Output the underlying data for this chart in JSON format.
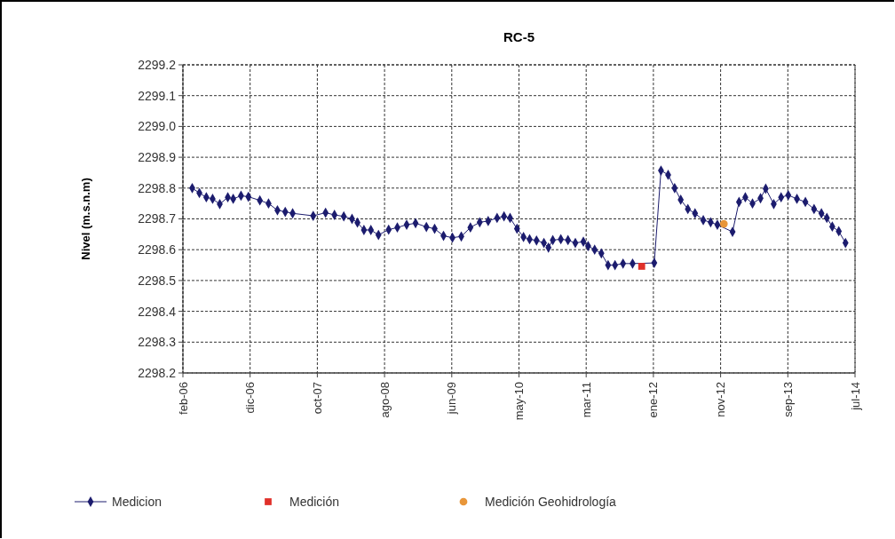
{
  "chart_data": {
    "type": "line",
    "title": "RC-5",
    "ylabel": "Nivel (m.s.n.m)",
    "xlim": [
      "2006-02-01",
      "2014-07-29"
    ],
    "ylim": [
      2298.2,
      2299.2
    ],
    "xticks": [
      {
        "value": "2006-02-01",
        "label": "feb-06"
      },
      {
        "value": "2006-12-08",
        "label": "dic-06"
      },
      {
        "value": "2007-10-14",
        "label": "oct-07"
      },
      {
        "value": "2008-08-19",
        "label": "ago-08"
      },
      {
        "value": "2009-06-25",
        "label": "jun-09"
      },
      {
        "value": "2010-05-01",
        "label": "may-10"
      },
      {
        "value": "2011-03-07",
        "label": "mar-11"
      },
      {
        "value": "2012-01-11",
        "label": "ene-12"
      },
      {
        "value": "2012-11-16",
        "label": "nov-12"
      },
      {
        "value": "2013-09-22",
        "label": "sep-13"
      },
      {
        "value": "2014-07-29",
        "label": "jul-14"
      }
    ],
    "yticks": [
      2298.2,
      2298.3,
      2298.4,
      2298.5,
      2298.6,
      2298.7,
      2298.8,
      2298.9,
      {
        "value": 2299,
        "label": "2299.0"
      },
      2299.1,
      2299.2
    ],
    "grid": true,
    "legend": "bottom",
    "series": [
      {
        "name": "Medicion",
        "marker": "diamond",
        "color": "#1c1c6e",
        "x": [
          "2006-03-16",
          "2006-04-18",
          "2006-05-20",
          "2006-06-18",
          "2006-07-21",
          "2006-08-27",
          "2006-09-21",
          "2006-10-27",
          "2006-11-30",
          "2007-01-22",
          "2007-03-03",
          "2007-04-13",
          "2007-05-19",
          "2007-06-22",
          "2007-09-25",
          "2007-11-21",
          "2008-01-01",
          "2008-02-13",
          "2008-03-22",
          "2008-04-16",
          "2008-05-16",
          "2008-06-17",
          "2008-07-22",
          "2008-09-07",
          "2008-10-17",
          "2008-11-29",
          "2009-01-09",
          "2009-02-28",
          "2009-04-07",
          "2009-05-18",
          "2009-06-28",
          "2009-08-08",
          "2009-09-19",
          "2009-11-01",
          "2009-12-10",
          "2010-01-20",
          "2010-02-21",
          "2010-03-21",
          "2010-04-22",
          "2010-05-22",
          "2010-06-19",
          "2010-07-21",
          "2010-08-24",
          "2010-09-14",
          "2010-10-04",
          "2010-11-10",
          "2010-12-13",
          "2011-01-16",
          "2011-02-22",
          "2011-03-16",
          "2011-04-15",
          "2011-05-16",
          "2011-06-16",
          "2011-07-18",
          "2011-08-24",
          "2011-10-07",
          "2012-01-15",
          "2012-02-15",
          "2012-03-19",
          "2012-04-18",
          "2012-05-16",
          "2012-06-18",
          "2012-07-21",
          "2012-08-28",
          "2012-10-01",
          "2012-11-01",
          "2013-01-10",
          "2013-02-09",
          "2013-03-10",
          "2013-04-12",
          "2013-05-19",
          "2013-06-12",
          "2013-07-19",
          "2013-08-22",
          "2013-09-24",
          "2013-11-03",
          "2013-12-12",
          "2014-01-21",
          "2014-02-24",
          "2014-03-21",
          "2014-04-15",
          "2014-05-15",
          "2014-06-15"
        ],
        "values": [
          2298.8,
          2298.784,
          2298.77,
          2298.765,
          2298.748,
          2298.77,
          2298.765,
          2298.775,
          2298.772,
          2298.76,
          2298.75,
          2298.728,
          2298.723,
          2298.718,
          2298.71,
          2298.72,
          2298.713,
          2298.708,
          2298.7,
          2298.688,
          2298.664,
          2298.664,
          2298.648,
          2298.665,
          2298.672,
          2298.681,
          2298.686,
          2298.674,
          2298.668,
          2298.645,
          2298.639,
          2298.643,
          2298.672,
          2298.689,
          2298.693,
          2298.703,
          2298.708,
          2298.703,
          2298.668,
          2298.641,
          2298.634,
          2298.63,
          2298.622,
          2298.607,
          2298.631,
          2298.634,
          2298.631,
          2298.622,
          2298.626,
          2298.612,
          2298.6,
          2298.588,
          2298.55,
          2298.55,
          2298.555,
          2298.555,
          2298.557,
          2298.857,
          2298.843,
          2298.8,
          2298.762,
          2298.732,
          2298.718,
          2298.696,
          2298.689,
          2298.681,
          2298.658,
          2298.755,
          2298.77,
          2298.75,
          2298.767,
          2298.798,
          2298.748,
          2298.77,
          2298.777,
          2298.765,
          2298.755,
          2298.732,
          2298.718,
          2298.703,
          2298.675,
          2298.66,
          2298.622
        ]
      },
      {
        "name": "Medición",
        "type": "scatter",
        "marker": "square",
        "color": "#e0302a",
        "x": [
          "2011-11-18"
        ],
        "values": [
          2298.546
        ]
      },
      {
        "name": "Medición Geohidrología",
        "type": "scatter",
        "marker": "circle",
        "color": "#e8963a",
        "x": [
          "2012-12-01"
        ],
        "values": [
          2298.684
        ]
      }
    ]
  }
}
